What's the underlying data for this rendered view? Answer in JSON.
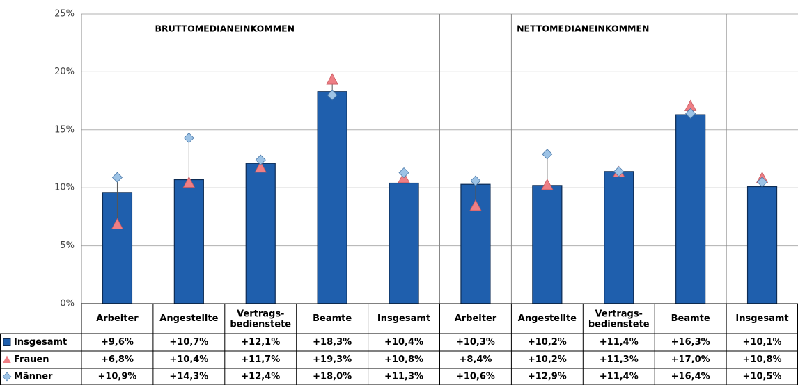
{
  "chart_data": {
    "type": "bar",
    "section_titles": [
      "BRUTTOMEDIANEINKOMMEN",
      "NETTOMEDIANEINKOMMEN"
    ],
    "categories": [
      "Arbeiter",
      "Angestellte",
      "Vertrags-bedienstete",
      "Beamte",
      "Insgesamt",
      "Arbeiter",
      "Angestellte",
      "Vertrags-bedienstete",
      "Beamte",
      "Insgesamt"
    ],
    "series": [
      {
        "name": "Insgesamt",
        "color": "#1f5fad",
        "values": [
          9.6,
          10.7,
          12.1,
          18.3,
          10.4,
          10.3,
          10.2,
          11.4,
          16.3,
          10.1
        ],
        "value_labels": [
          "+9,6%",
          "+10,7%",
          "+12,1%",
          "+18,3%",
          "+10,4%",
          "+10,3%",
          "+10,2%",
          "+11,4%",
          "+16,3%",
          "+10,1%"
        ]
      },
      {
        "name": "Frauen",
        "color": "#ee7f85",
        "values": [
          6.8,
          10.4,
          11.7,
          19.3,
          10.8,
          8.4,
          10.2,
          11.3,
          17.0,
          10.8
        ],
        "value_labels": [
          "+6,8%",
          "+10,4%",
          "+11,7%",
          "+19,3%",
          "+10,8%",
          "+8,4%",
          "+10,2%",
          "+11,3%",
          "+17,0%",
          "+10,8%"
        ]
      },
      {
        "name": "Männer",
        "color": "#9dc3e6",
        "values": [
          10.9,
          14.3,
          12.4,
          18.0,
          11.3,
          10.6,
          12.9,
          11.4,
          16.4,
          10.5
        ],
        "value_labels": [
          "+10,9%",
          "+14,3%",
          "+12,4%",
          "+18,0%",
          "+11,3%",
          "+10,6%",
          "+12,9%",
          "+11,4%",
          "+16,4%",
          "+10,5%"
        ]
      }
    ],
    "ylim": [
      0,
      25
    ],
    "yticks": [
      {
        "value": 0,
        "label": "0%"
      },
      {
        "value": 5,
        "label": "5%"
      },
      {
        "value": 10,
        "label": "10%"
      },
      {
        "value": 15,
        "label": "15%"
      },
      {
        "value": 20,
        "label": "20%"
      },
      {
        "value": 25,
        "label": "25%"
      }
    ],
    "grid": true
  }
}
